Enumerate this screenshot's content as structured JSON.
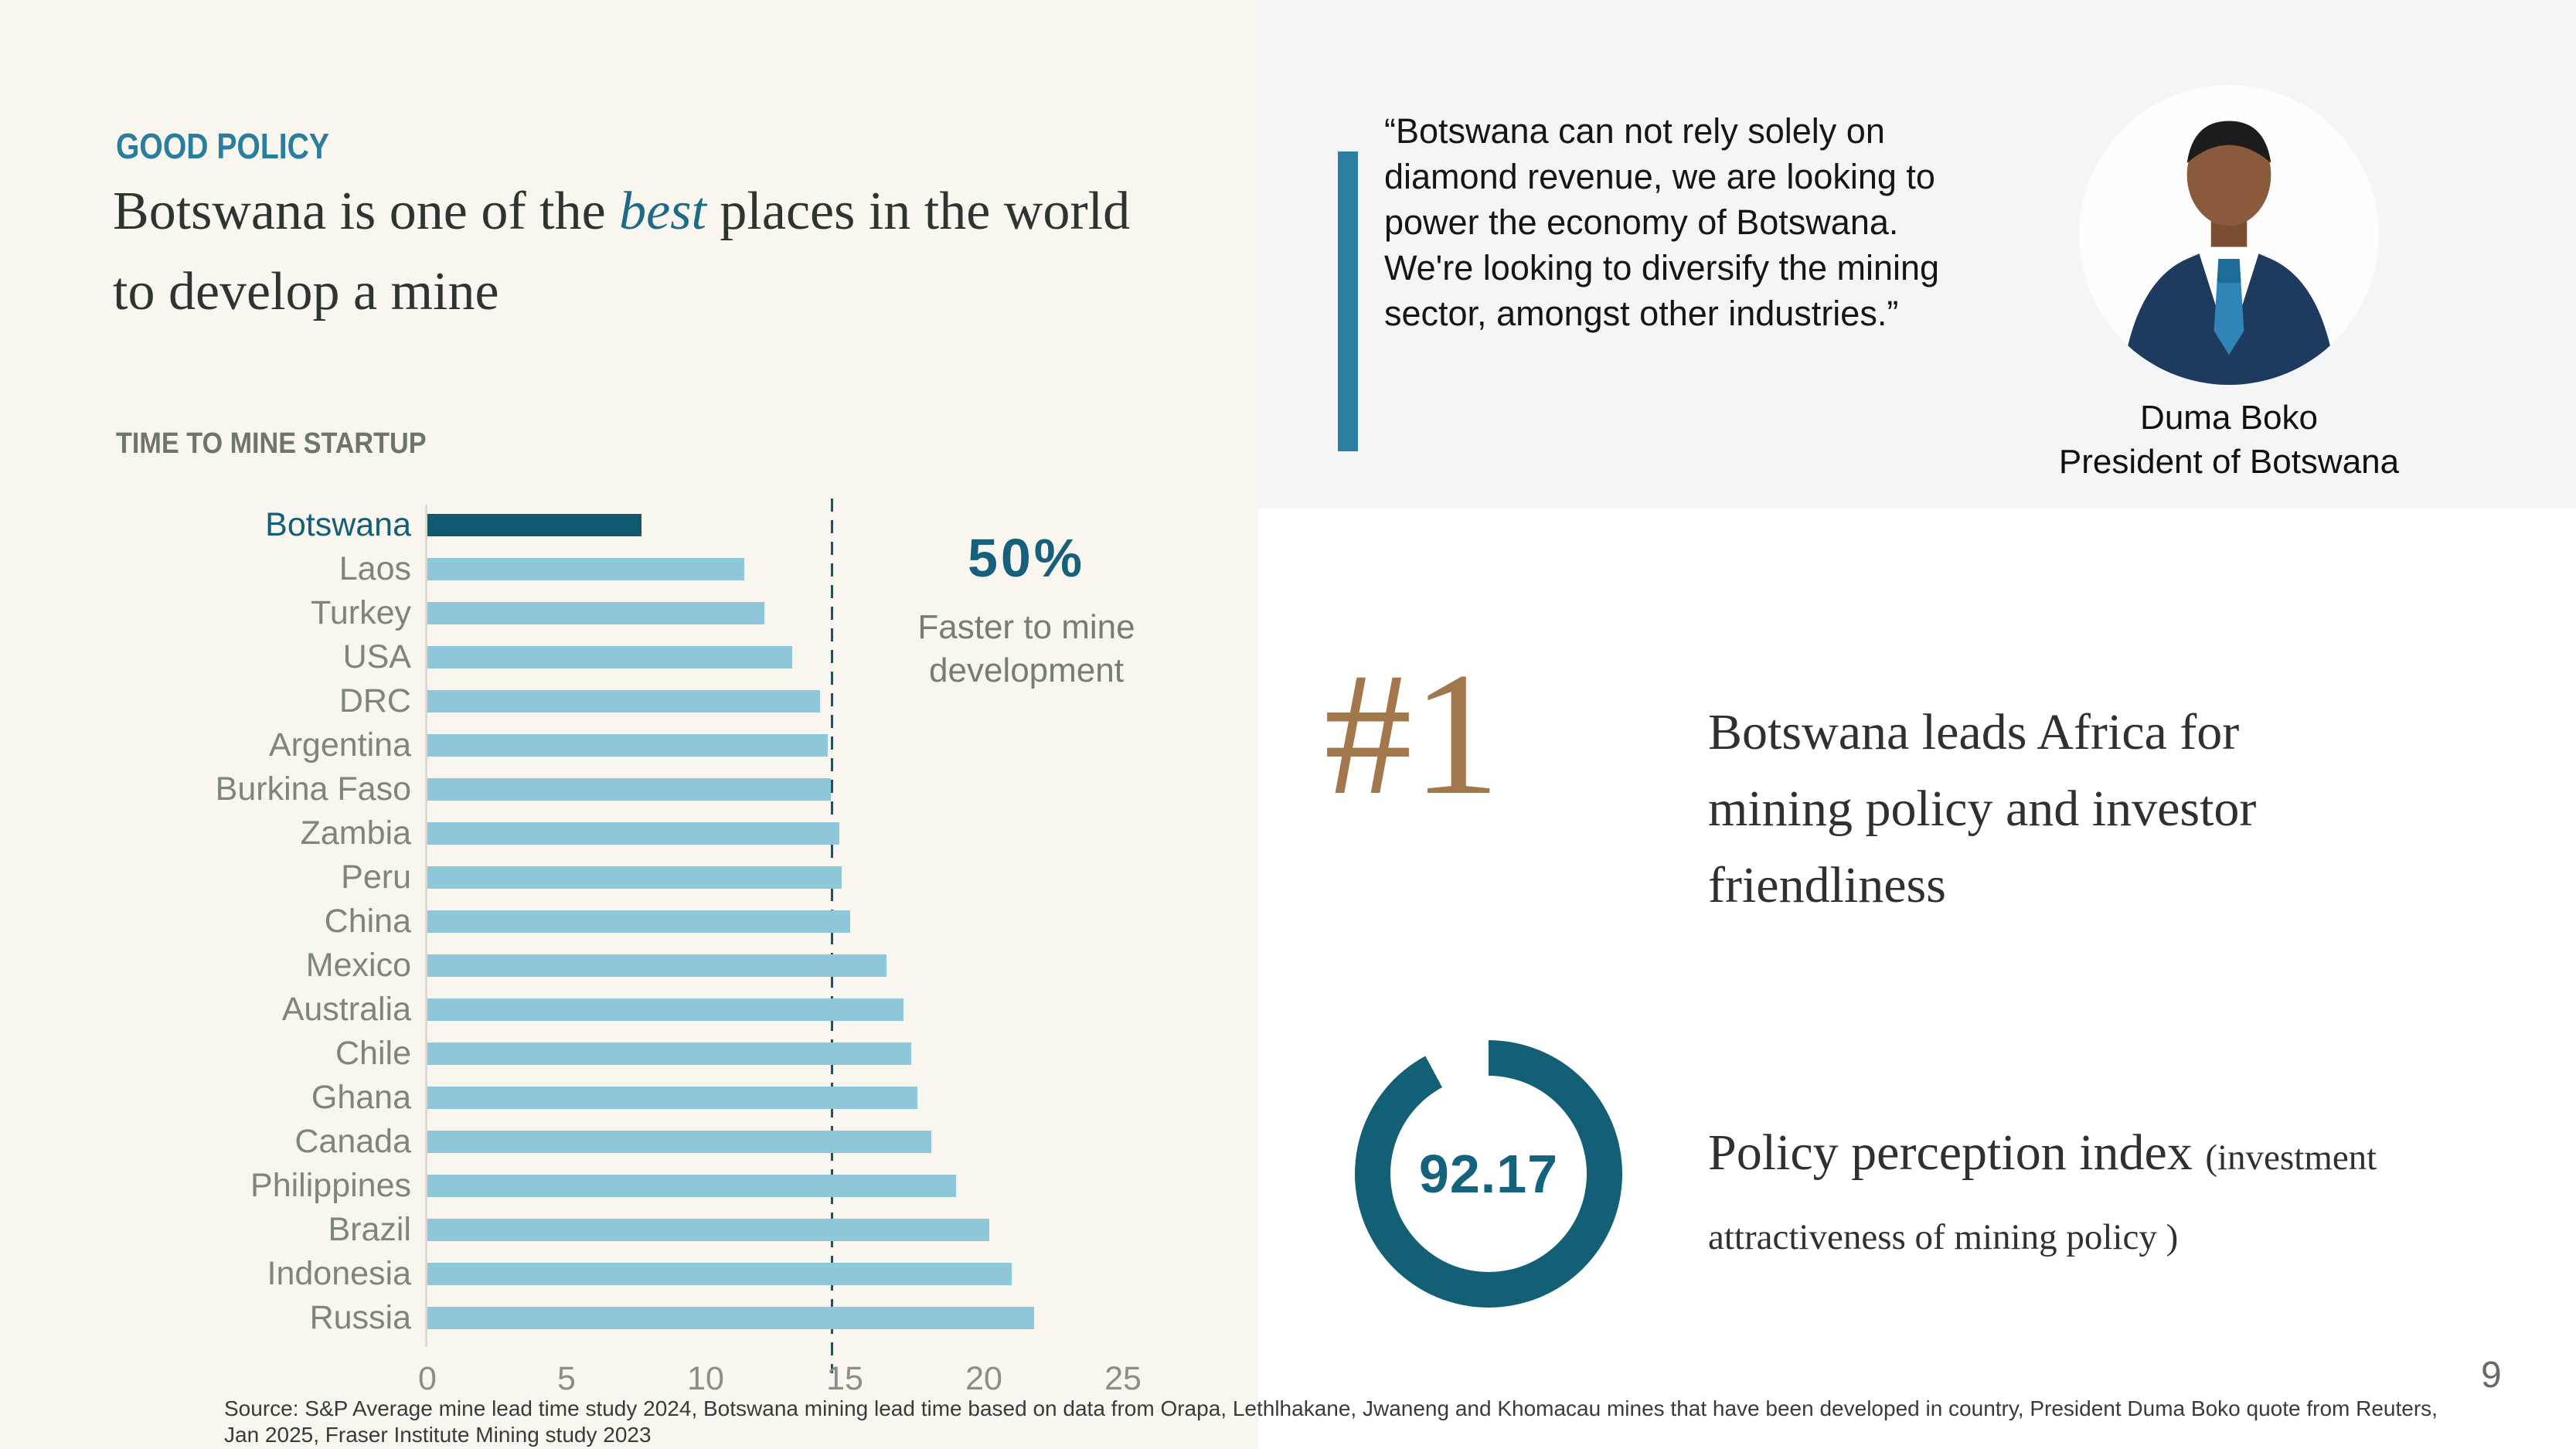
{
  "colors": {
    "accent_teal": "#2a7e9d",
    "dark_teal": "#0f5a71",
    "light_blue": "#8ec7d9",
    "brown": "#a3774c",
    "donut_teal": "#135f75"
  },
  "header": {
    "eyebrow": "GOOD POLICY",
    "title_prefix": "Botswana is one of the ",
    "title_emphasis": "best",
    "title_suffix": " places in the world to develop a mine"
  },
  "chart_data": {
    "type": "bar",
    "orientation": "horizontal",
    "title": "TIME TO MINE STARTUP",
    "categories": [
      "Botswana",
      "Laos",
      "Turkey",
      "USA",
      "DRC",
      "Argentina",
      "Burkina Faso",
      "Zambia",
      "Peru",
      "China",
      "Mexico",
      "Australia",
      "Chile",
      "Ghana",
      "Canada",
      "Philippines",
      "Brazil",
      "Indonesia",
      "Russia"
    ],
    "values": [
      7.7,
      11.4,
      12.1,
      13.1,
      14.1,
      14.4,
      14.5,
      14.8,
      14.9,
      15.2,
      16.5,
      17.1,
      17.4,
      17.6,
      18.1,
      19.0,
      20.2,
      21.0,
      21.8
    ],
    "xlim": [
      0,
      25
    ],
    "x_ticks": [
      0,
      5,
      10,
      15,
      20,
      25
    ],
    "highlight_category": "Botswana",
    "highlight_color": "#0f5a71",
    "bar_color": "#8ec7d9",
    "reference_line": 14.5,
    "grid": false,
    "annotation": {
      "value": "50%",
      "label": "Faster to mine development"
    }
  },
  "quote": {
    "text": "“Botswana can not rely solely on diamond revenue, we are looking to power the economy of Botswana. We're looking to diversify the mining sector, amongst other industries.”",
    "author": "Duma Boko",
    "author_title": "President of Botswana"
  },
  "rank": {
    "value": "#1",
    "description": "Botswana leads Africa for mining policy and investor friendliness"
  },
  "index": {
    "value": "92.17",
    "percent": 92.17,
    "label": "Policy perception index ",
    "label_detail": "(investment attractiveness of mining policy )"
  },
  "footer": {
    "source": "Source: S&P Average mine lead time study 2024, Botswana mining lead time based on data from Orapa, Lethlhakane, Jwaneng and Khomacau mines that have been developed in country, President Duma Boko quote from Reuters, Jan 2025, Fraser Institute Mining study 2023",
    "page_number": "9"
  }
}
